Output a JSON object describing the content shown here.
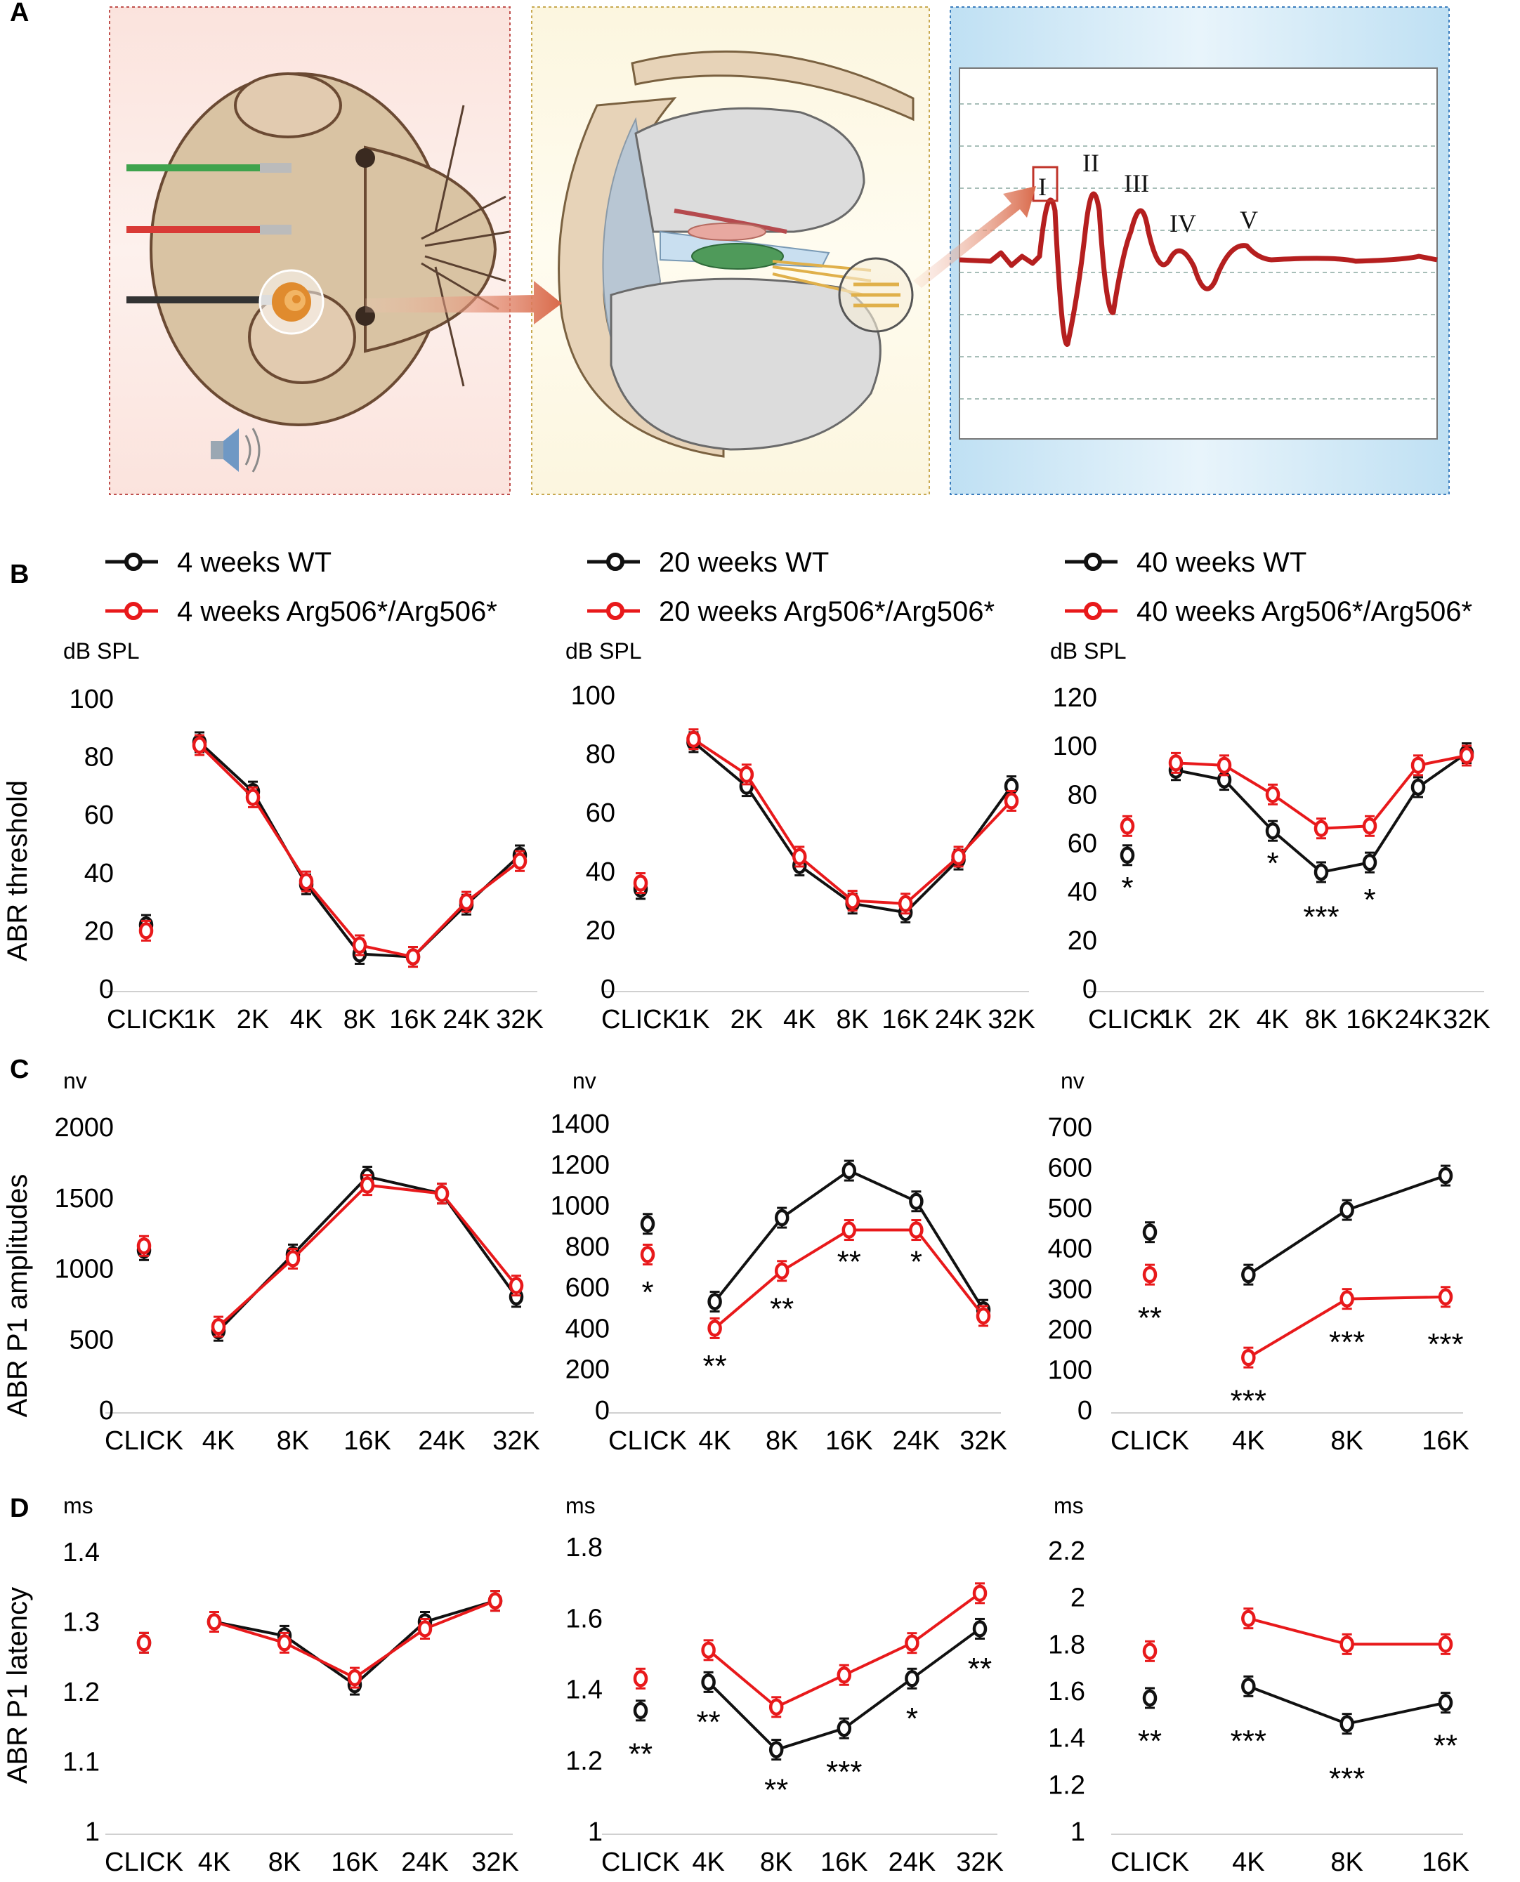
{
  "panel_labels": {
    "A": "A",
    "B": "B",
    "C": "C",
    "D": "D"
  },
  "panelA": {
    "icons": [
      "mouse-illustration",
      "electrode-icon",
      "speaker-icon",
      "cochlea-icon",
      "arrow-icon"
    ],
    "wave_peaks": [
      "I",
      "II",
      "III",
      "IV",
      "V"
    ]
  },
  "colors": {
    "wt": "#111111",
    "mut": "#e8191b"
  },
  "legends": [
    {
      "wt": "4 weeks WT",
      "mut": "4 weeks Arg506*/Arg506*"
    },
    {
      "wt": "20 weeks WT",
      "mut": "20 weeks Arg506*/Arg506*"
    },
    {
      "wt": "40 weeks WT",
      "mut": "40 weeks Arg506*/Arg506*"
    }
  ],
  "row_titles": {
    "B": "ABR threshold",
    "C": "ABR P1 amplitudes",
    "D": "ABR P1 latency"
  },
  "chart_data": [
    {
      "id": "B1",
      "type": "line",
      "unit": "dB SPL",
      "ylabel": "ABR threshold",
      "categories": [
        "CLICK",
        "1K",
        "2K",
        "4K",
        "8K",
        "16K",
        "24K",
        "32K"
      ],
      "yticks": [
        "0",
        "20",
        "40",
        "60",
        "80",
        "100"
      ],
      "ylim": [
        0,
        100
      ],
      "series": [
        {
          "name": "4 weeks WT",
          "values": [
            22,
            85,
            68,
            36,
            12,
            11,
            29,
            46
          ]
        },
        {
          "name": "4 weeks Arg506*/Arg506*",
          "values": [
            20,
            84,
            66,
            37,
            15,
            11,
            30,
            44
          ]
        }
      ],
      "annotations": []
    },
    {
      "id": "B2",
      "type": "line",
      "unit": "dB SPL",
      "categories": [
        "CLICK",
        "1K",
        "2K",
        "4K",
        "8K",
        "16K",
        "24K",
        "32K"
      ],
      "yticks": [
        "0",
        "20",
        "40",
        "60",
        "80",
        "100"
      ],
      "ylim": [
        0,
        100
      ],
      "series": [
        {
          "name": "20 weeks WT",
          "values": [
            34,
            84,
            69,
            42,
            29,
            26,
            44,
            69
          ]
        },
        {
          "name": "20 weeks Arg506*/Arg506*",
          "values": [
            36,
            85,
            73,
            45,
            30,
            29,
            45,
            64
          ]
        }
      ],
      "annotations": []
    },
    {
      "id": "B3",
      "type": "line",
      "unit": "dB SPL",
      "categories": [
        "CLICK",
        "1K",
        "2K",
        "4K",
        "8K",
        "16K",
        "24K",
        "32K"
      ],
      "yticks": [
        "0",
        "20",
        "40",
        "60",
        "80",
        "100",
        "120"
      ],
      "ylim": [
        0,
        120
      ],
      "series": [
        {
          "name": "40 weeks WT",
          "values": [
            55,
            90,
            86,
            65,
            48,
            52,
            83,
            97
          ]
        },
        {
          "name": "40 weeks Arg506*/Arg506*",
          "values": [
            67,
            93,
            92,
            80,
            66,
            67,
            92,
            96
          ]
        }
      ],
      "annotations": [
        {
          "category": "CLICK",
          "text": "*",
          "value": 42
        },
        {
          "category": "4K",
          "text": "*",
          "value": 52
        },
        {
          "category": "8K",
          "text": "***",
          "value": 30
        },
        {
          "category": "16K",
          "text": "*",
          "value": 37
        }
      ]
    },
    {
      "id": "C1",
      "type": "line",
      "unit": "nv",
      "ylabel": "ABR P1 amplitudes",
      "categories": [
        "CLICK",
        "4K",
        "8K",
        "16K",
        "24K",
        "32K"
      ],
      "yticks": [
        "0",
        "500",
        "1000",
        "1500",
        "2000"
      ],
      "ylim": [
        0,
        2000
      ],
      "series": [
        {
          "name": "4 weeks WT",
          "values": [
            1130,
            560,
            1100,
            1650,
            1530,
            800
          ]
        },
        {
          "name": "4 weeks Arg506*/Arg506*",
          "values": [
            1160,
            590,
            1070,
            1590,
            1530,
            880
          ]
        }
      ],
      "annotations": []
    },
    {
      "id": "C2",
      "type": "line",
      "unit": "nv",
      "categories": [
        "CLICK",
        "4K",
        "8K",
        "16K",
        "24K",
        "32K"
      ],
      "yticks": [
        "0",
        "200",
        "400",
        "600",
        "800",
        "1000",
        "1200",
        "1400"
      ],
      "ylim": [
        0,
        1400
      ],
      "series": [
        {
          "name": "20 weeks WT",
          "values": [
            910,
            530,
            940,
            1170,
            1020,
            490
          ]
        },
        {
          "name": "20 weeks Arg506*/Arg506*",
          "values": [
            760,
            400,
            680,
            880,
            880,
            460
          ]
        }
      ],
      "annotations": [
        {
          "category": "CLICK",
          "text": "*",
          "value": 580
        },
        {
          "category": "4K",
          "text": "**",
          "value": 220
        },
        {
          "category": "8K",
          "text": "**",
          "value": 500
        },
        {
          "category": "16K",
          "text": "**",
          "value": 730
        },
        {
          "category": "24K",
          "text": "*",
          "value": 730
        }
      ]
    },
    {
      "id": "C3",
      "type": "line",
      "unit": "nv",
      "categories": [
        "CLICK",
        "4K",
        "8K",
        "16K"
      ],
      "yticks": [
        "0",
        "100",
        "200",
        "300",
        "400",
        "500",
        "600",
        "700"
      ],
      "ylim": [
        0,
        700
      ],
      "series": [
        {
          "name": "40 weeks WT",
          "values": [
            440,
            335,
            495,
            580
          ]
        },
        {
          "name": "40 weeks Arg506*/Arg506*",
          "values": [
            335,
            130,
            275,
            280
          ]
        }
      ],
      "annotations": [
        {
          "category": "CLICK",
          "text": "**",
          "value": 230
        },
        {
          "category": "4K",
          "text": "***",
          "value": 25
        },
        {
          "category": "8K",
          "text": "***",
          "value": 170
        },
        {
          "category": "16K",
          "text": "***",
          "value": 165
        }
      ]
    },
    {
      "id": "D1",
      "type": "line",
      "unit": "ms",
      "ylabel": "ABR P1 latency",
      "categories": [
        "CLICK",
        "4K",
        "8K",
        "16K",
        "24K",
        "32K"
      ],
      "yticks": [
        "1",
        "1.1",
        "1.2",
        "1.3",
        "1.4"
      ],
      "ylim": [
        1,
        1.4
      ],
      "series": [
        {
          "name": "4 weeks WT",
          "values": [
            1.27,
            1.3,
            1.28,
            1.21,
            1.3,
            1.33
          ]
        },
        {
          "name": "4 weeks Arg506*/Arg506*",
          "values": [
            1.27,
            1.3,
            1.27,
            1.22,
            1.29,
            1.33
          ]
        }
      ],
      "annotations": []
    },
    {
      "id": "D2",
      "type": "line",
      "unit": "ms",
      "categories": [
        "CLICK",
        "4K",
        "8K",
        "16K",
        "24K",
        "32K"
      ],
      "yticks": [
        "1",
        "1.2",
        "1.4",
        "1.6",
        "1.8"
      ],
      "ylim": [
        1,
        1.8
      ],
      "series": [
        {
          "name": "20 weeks WT",
          "values": [
            1.34,
            1.42,
            1.23,
            1.29,
            1.43,
            1.57
          ]
        },
        {
          "name": "20 weeks Arg506*/Arg506*",
          "values": [
            1.43,
            1.51,
            1.35,
            1.44,
            1.53,
            1.67
          ]
        }
      ],
      "annotations": [
        {
          "category": "CLICK",
          "text": "**",
          "value": 1.22
        },
        {
          "category": "4K",
          "text": "**",
          "value": 1.31
        },
        {
          "category": "8K",
          "text": "**",
          "value": 1.12
        },
        {
          "category": "16K",
          "text": "***",
          "value": 1.17
        },
        {
          "category": "24K",
          "text": "*",
          "value": 1.32
        },
        {
          "category": "32K",
          "text": "**",
          "value": 1.46
        }
      ]
    },
    {
      "id": "D3",
      "type": "line",
      "unit": "ms",
      "categories": [
        "CLICK",
        "4K",
        "8K",
        "16K"
      ],
      "yticks": [
        "1",
        "1.2",
        "1.4",
        "1.6",
        "1.8",
        "2",
        "2.2"
      ],
      "ylim": [
        1,
        2.2
      ],
      "series": [
        {
          "name": "40 weeks WT",
          "values": [
            1.57,
            1.62,
            1.46,
            1.55
          ]
        },
        {
          "name": "40 weeks Arg506*/Arg506*",
          "values": [
            1.77,
            1.91,
            1.8,
            1.8
          ]
        }
      ],
      "annotations": [
        {
          "category": "CLICK",
          "text": "**",
          "value": 1.39
        },
        {
          "category": "4K",
          "text": "***",
          "value": 1.39
        },
        {
          "category": "8K",
          "text": "***",
          "value": 1.23
        },
        {
          "category": "16K",
          "text": "**",
          "value": 1.37
        }
      ]
    }
  ]
}
